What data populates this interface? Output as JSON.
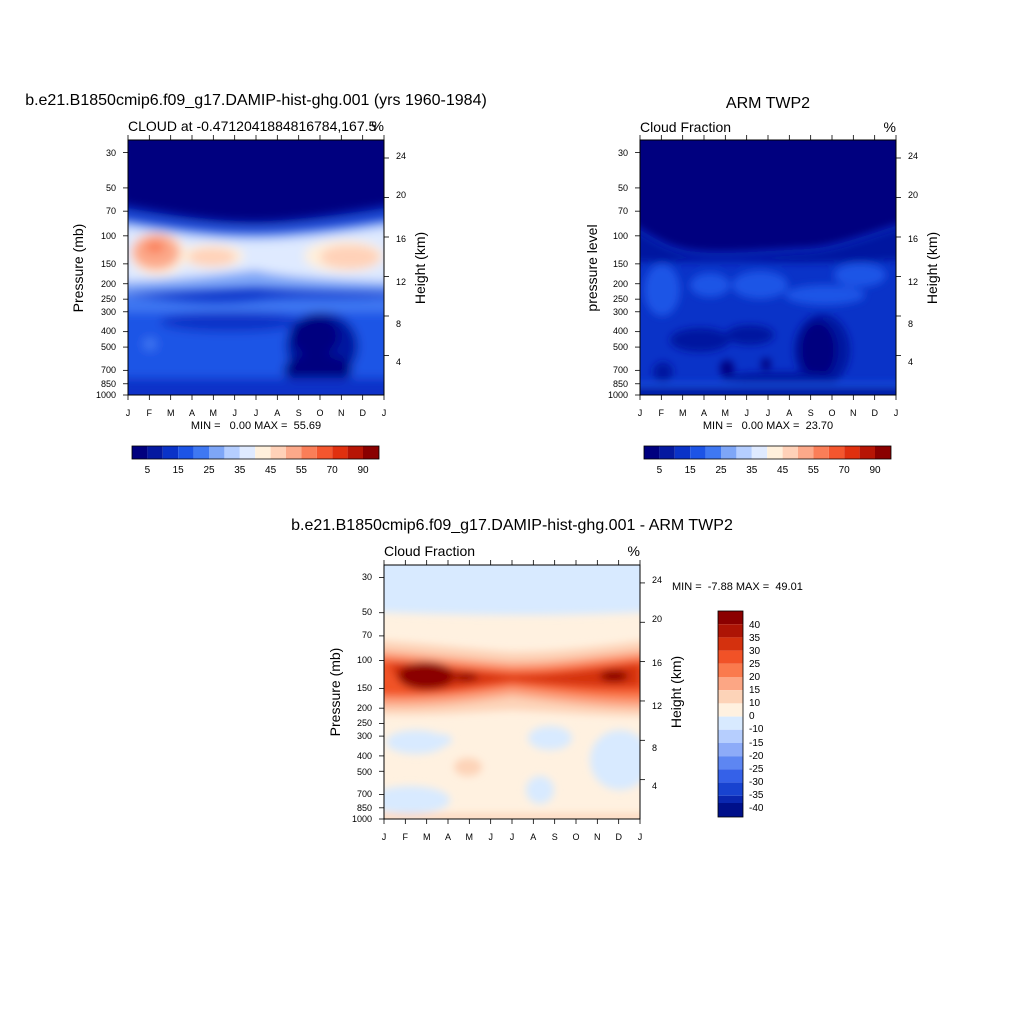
{
  "chart_data": [
    {
      "type": "heatmap",
      "title": "b.e21.B1850cmip6.f09_g17.DAMIP-hist-ghg.001 (yrs 1960-1984)",
      "left_string": "CLOUD at -0.4712041884816784,167.5",
      "right_string": "%",
      "ylabel": "Pressure (mb)",
      "ylabel_right": "Height (km)",
      "x_ticks": [
        "J",
        "F",
        "M",
        "A",
        "M",
        "J",
        "J",
        "A",
        "S",
        "O",
        "N",
        "D",
        "J"
      ],
      "y_ticks": [
        "30",
        "50",
        "70",
        "100",
        "150",
        "200",
        "250",
        "300",
        "400",
        "500",
        "700",
        "850",
        "1000"
      ],
      "y_ticks_right": [
        "24",
        "20",
        "16",
        "12",
        "8",
        "4"
      ],
      "y_scale": "log",
      "ylim": [
        1000,
        25
      ],
      "stats": "MIN =   0.00 MAX =  55.69",
      "colorbar_labels": [
        "5",
        "15",
        "25",
        "35",
        "45",
        "55",
        "70",
        "90"
      ],
      "colorbar_orientation": "horizontal"
    },
    {
      "type": "heatmap",
      "title": "ARM TWP2",
      "left_string": "Cloud Fraction",
      "right_string": "%",
      "ylabel": "pressure level",
      "ylabel_right": "Height (km)",
      "x_ticks": [
        "J",
        "F",
        "M",
        "A",
        "M",
        "J",
        "J",
        "A",
        "S",
        "O",
        "N",
        "D",
        "J"
      ],
      "y_ticks": [
        "30",
        "50",
        "70",
        "100",
        "150",
        "200",
        "250",
        "300",
        "400",
        "500",
        "700",
        "850",
        "1000"
      ],
      "y_ticks_right": [
        "24",
        "20",
        "16",
        "12",
        "8",
        "4"
      ],
      "y_scale": "log",
      "ylim": [
        1000,
        25
      ],
      "stats": "MIN =   0.00 MAX =  23.70",
      "colorbar_labels": [
        "5",
        "15",
        "25",
        "35",
        "45",
        "55",
        "70",
        "90"
      ],
      "colorbar_orientation": "horizontal"
    },
    {
      "type": "heatmap",
      "title": "b.e21.B1850cmip6.f09_g17.DAMIP-hist-ghg.001 - ARM TWP2",
      "left_string": "Cloud Fraction",
      "right_string": "%",
      "ylabel": "Pressure (mb)",
      "ylabel_right": "Height (km)",
      "x_ticks": [
        "J",
        "F",
        "M",
        "A",
        "M",
        "J",
        "J",
        "A",
        "S",
        "O",
        "N",
        "D",
        "J"
      ],
      "y_ticks": [
        "30",
        "50",
        "70",
        "100",
        "150",
        "200",
        "250",
        "300",
        "400",
        "500",
        "700",
        "850",
        "1000"
      ],
      "y_ticks_right": [
        "24",
        "20",
        "16",
        "12",
        "8",
        "4"
      ],
      "y_scale": "log",
      "ylim": [
        1000,
        25
      ],
      "stats": "MIN =  -7.88 MAX =  49.01",
      "colorbar_labels": [
        "40",
        "35",
        "30",
        "25",
        "20",
        "15",
        "10",
        "0",
        "-10",
        "-15",
        "-20",
        "-25",
        "-30",
        "-35",
        "-40"
      ],
      "colorbar_orientation": "vertical"
    }
  ],
  "colors": {
    "sequential": [
      "#00007f",
      "#0419a0",
      "#0a33c8",
      "#1c54e6",
      "#3f78f2",
      "#7ea6f7",
      "#b5ceff",
      "#dfeaff",
      "#fff0dc",
      "#ffd1b8",
      "#fca98a",
      "#fa7e58",
      "#f4562e",
      "#e0300f",
      "#b71505",
      "#8a0000"
    ],
    "diverging": [
      "#8b0000",
      "#ad1405",
      "#d4310e",
      "#f15227",
      "#fa7a4d",
      "#fca684",
      "#fdd3b8",
      "#fff1e0",
      "#d8eaff",
      "#b6cefe",
      "#8dabf8",
      "#5d86f2",
      "#3561e8",
      "#1843d0",
      "#0a27b0",
      "#00108a"
    ]
  }
}
